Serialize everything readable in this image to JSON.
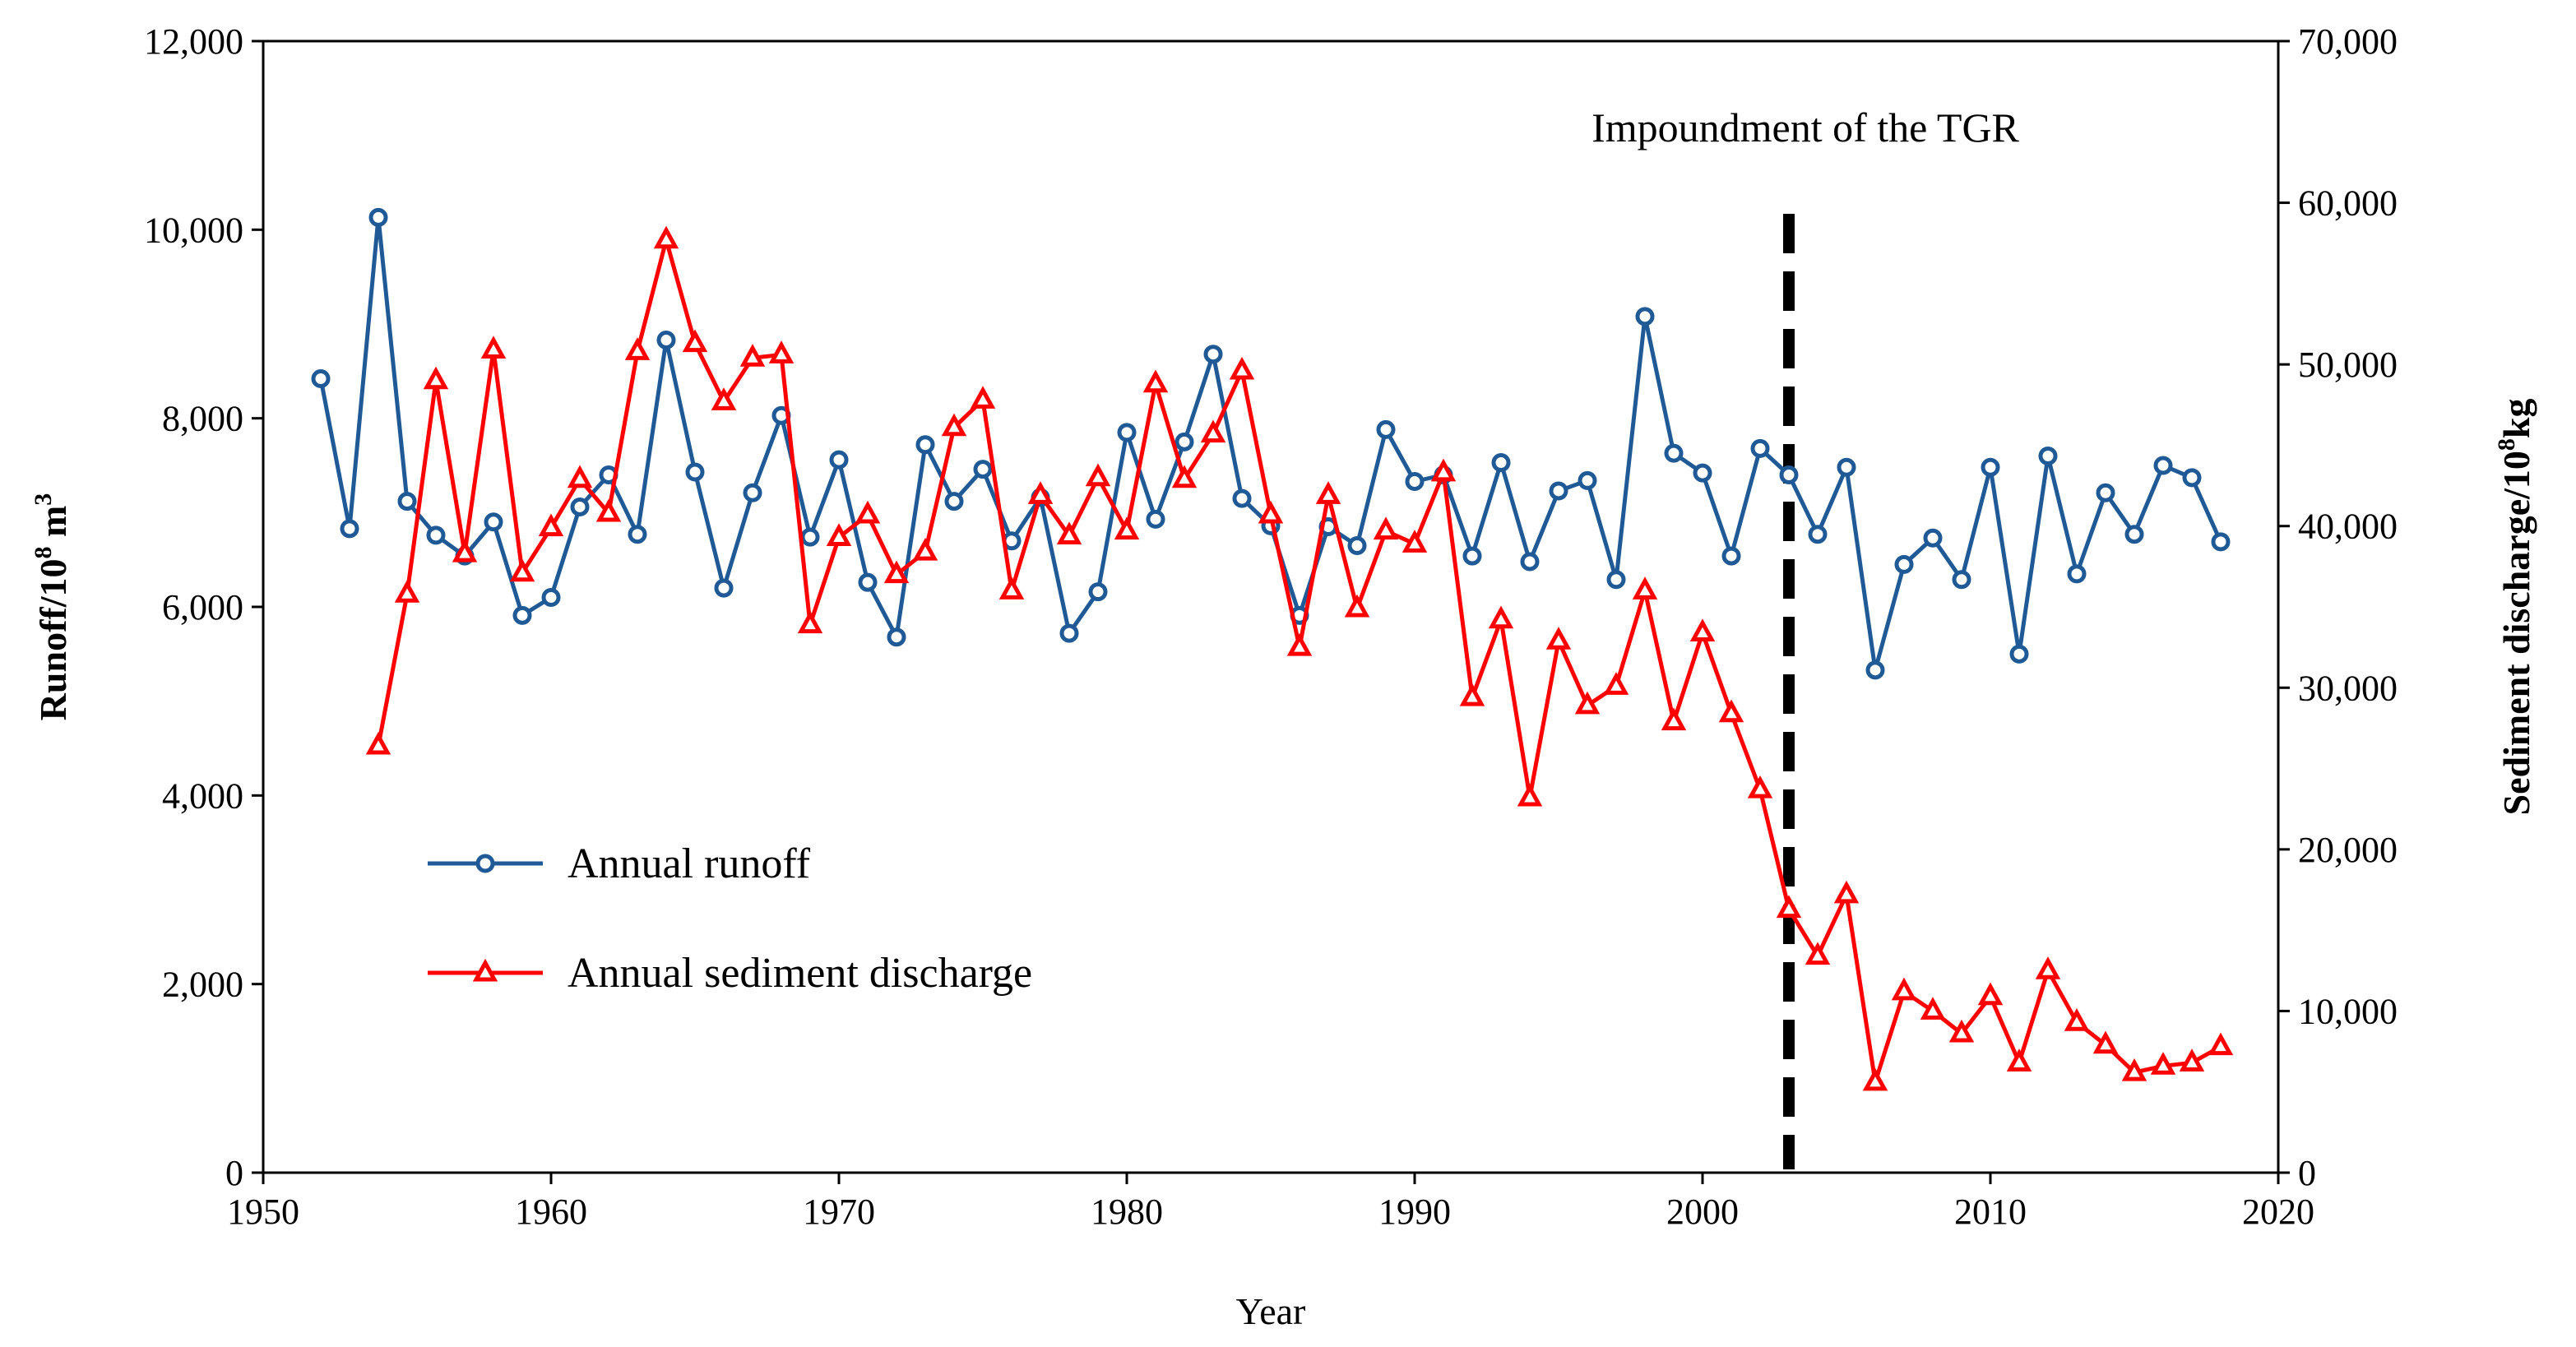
{
  "chart_data": {
    "type": "line",
    "x": [
      1952,
      1953,
      1954,
      1955,
      1956,
      1957,
      1958,
      1959,
      1960,
      1961,
      1962,
      1963,
      1964,
      1965,
      1966,
      1967,
      1968,
      1969,
      1970,
      1971,
      1972,
      1973,
      1974,
      1975,
      1976,
      1977,
      1978,
      1979,
      1980,
      1981,
      1982,
      1983,
      1984,
      1985,
      1986,
      1987,
      1988,
      1989,
      1990,
      1991,
      1992,
      1993,
      1994,
      1995,
      1996,
      1997,
      1998,
      1999,
      2000,
      2001,
      2002,
      2003,
      2004,
      2005,
      2006,
      2007,
      2008,
      2009,
      2010,
      2011,
      2012,
      2013,
      2014,
      2015,
      2016,
      2017,
      2018
    ],
    "series": [
      {
        "name": "Annual runoff",
        "axis": "left",
        "color": "#1f5a96",
        "marker": "circle",
        "x": [
          1952,
          1953,
          1954,
          1955,
          1956,
          1957,
          1958,
          1959,
          1960,
          1961,
          1962,
          1963,
          1964,
          1965,
          1966,
          1967,
          1968,
          1969,
          1970,
          1971,
          1972,
          1973,
          1974,
          1975,
          1976,
          1977,
          1978,
          1979,
          1980,
          1981,
          1982,
          1983,
          1984,
          1985,
          1986,
          1987,
          1988,
          1989,
          1990,
          1991,
          1992,
          1993,
          1994,
          1995,
          1996,
          1997,
          1998,
          1999,
          2000,
          2001,
          2002,
          2003,
          2004,
          2005,
          2006,
          2007,
          2008,
          2009,
          2010,
          2011,
          2012,
          2013,
          2014,
          2015,
          2016,
          2017,
          2018
        ],
        "values": [
          8420,
          6830,
          10130,
          7120,
          6760,
          6540,
          6900,
          5910,
          6100,
          7060,
          7400,
          6770,
          8830,
          7430,
          6200,
          7210,
          8030,
          6740,
          7560,
          6260,
          5680,
          7720,
          7120,
          7460,
          6700,
          7160,
          5720,
          6160,
          7850,
          6930,
          7750,
          8680,
          7150,
          6860,
          5910,
          6850,
          6650,
          7880,
          7330,
          7400,
          6540,
          7530,
          6480,
          7230,
          7340,
          6290,
          9080,
          7630,
          7420,
          6540,
          7680,
          7400,
          6770,
          7480,
          5330,
          6450,
          6730,
          6290,
          7480,
          5500,
          7600,
          6350,
          7210,
          6770,
          7500,
          7370,
          6690
        ]
      },
      {
        "name": "Annual sediment discharge",
        "axis": "right",
        "color": "#ff0000",
        "marker": "triangle",
        "x": [
          1954,
          1955,
          1956,
          1957,
          1958,
          1959,
          1960,
          1961,
          1962,
          1963,
          1964,
          1965,
          1966,
          1967,
          1968,
          1969,
          1970,
          1971,
          1972,
          1973,
          1974,
          1975,
          1976,
          1977,
          1978,
          1979,
          1980,
          1981,
          1982,
          1983,
          1984,
          1985,
          1986,
          1987,
          1988,
          1989,
          1990,
          1991,
          1992,
          1993,
          1994,
          1995,
          1996,
          1997,
          1998,
          1999,
          2000,
          2001,
          2002,
          2003,
          2004,
          2005,
          2006,
          2007,
          2008,
          2009,
          2010,
          2011,
          2012,
          2013,
          2014,
          2015,
          2016,
          2017,
          2018
        ],
        "values": [
          26400,
          35800,
          49000,
          38300,
          50900,
          37100,
          39900,
          42900,
          40800,
          50800,
          57700,
          51300,
          47700,
          50400,
          50600,
          33900,
          39300,
          40700,
          37000,
          38400,
          46100,
          47800,
          36000,
          41900,
          39400,
          43000,
          39700,
          48800,
          42900,
          45700,
          49600,
          40700,
          32500,
          41900,
          34900,
          39700,
          38900,
          43300,
          29400,
          34200,
          23200,
          32900,
          28900,
          30100,
          36000,
          27900,
          33400,
          28400,
          23700,
          16300,
          13400,
          17200,
          5600,
          11200,
          10000,
          8600,
          10900,
          6800,
          12500,
          9300,
          7900,
          6200,
          6600,
          6800,
          7800
        ]
      }
    ],
    "axes": {
      "x": {
        "label": "Year",
        "range": [
          1950,
          2020
        ],
        "ticks": [
          1950,
          1960,
          1970,
          1980,
          1990,
          2000,
          2010,
          2020
        ],
        "tick_labels": [
          "1950",
          "1960",
          "1970",
          "1980",
          "1990",
          "2000",
          "2010",
          "2020"
        ]
      },
      "y_left": {
        "label_main": "Runoff/10",
        "label_sup": "8",
        "label_tail": " m",
        "label_sup2": "3",
        "range": [
          0,
          12000
        ],
        "ticks": [
          0,
          2000,
          4000,
          6000,
          8000,
          10000,
          12000
        ],
        "tick_labels": [
          "0",
          "2,000",
          "4,000",
          "6,000",
          "8,000",
          "10,000",
          "12,000"
        ]
      },
      "y_right": {
        "label_main": "Sediment discharge/10",
        "label_sup": "8",
        "label_tail": "kg",
        "range": [
          0,
          70000
        ],
        "ticks": [
          0,
          10000,
          20000,
          30000,
          40000,
          50000,
          60000,
          70000
        ],
        "tick_labels": [
          "0",
          "10,000",
          "20,000",
          "30,000",
          "40,000",
          "50,000",
          "60,000",
          "70,000"
        ]
      }
    },
    "annotation": {
      "text": "Impoundment of the TGR",
      "x": 2003
    },
    "legend": {
      "position": "lower-left",
      "entries": [
        "Annual runoff",
        "Annual sediment discharge"
      ]
    },
    "grid": false
  }
}
